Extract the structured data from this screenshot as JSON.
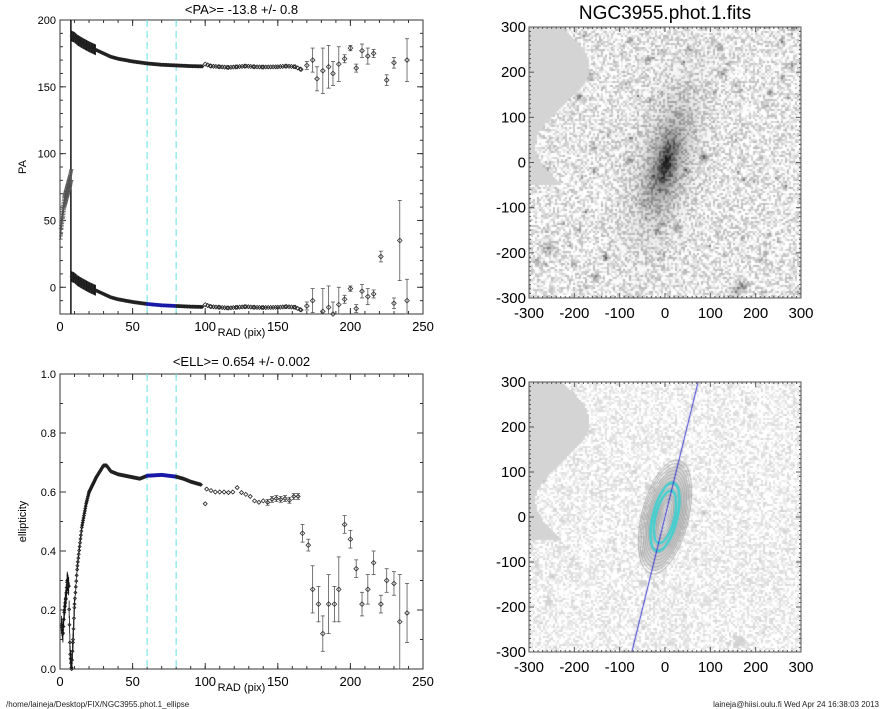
{
  "chart_data": [
    {
      "type": "scatter",
      "id": "pa",
      "title": "<PA>= -13.8 +/-   0.8",
      "xlabel": "RAD (pix)",
      "ylabel": "PA",
      "xlim": [
        0,
        250
      ],
      "ylim": [
        -20,
        200
      ],
      "xticks": [
        "0",
        "50",
        "100",
        "150",
        "200",
        "250"
      ],
      "yticks": [
        "0",
        "50",
        "100",
        "150",
        "200"
      ],
      "fit_range": [
        60,
        80
      ],
      "colors": {
        "points": "#222222",
        "fit": "#1a1aa8",
        "marker_lines": "#7fe8e8"
      },
      "inner_branch": [
        [
          0.5,
          40
        ],
        [
          1,
          48
        ],
        [
          2,
          56
        ],
        [
          3,
          64
        ],
        [
          4,
          68
        ],
        [
          5,
          72
        ],
        [
          6,
          76
        ],
        [
          7,
          80
        ],
        [
          7.8,
          84
        ]
      ],
      "upper_branch": [
        [
          8,
          188
        ],
        [
          10,
          187
        ],
        [
          12,
          185
        ],
        [
          15,
          183
        ],
        [
          20,
          180
        ],
        [
          25,
          177.5
        ],
        [
          30,
          175
        ],
        [
          35,
          172.5
        ],
        [
          40,
          171
        ],
        [
          50,
          169
        ],
        [
          60,
          167.5
        ],
        [
          70,
          166.5
        ],
        [
          80,
          166
        ],
        [
          90,
          165.5
        ],
        [
          98,
          165.3
        ],
        [
          100,
          167
        ],
        [
          104,
          165.5
        ],
        [
          110,
          165
        ],
        [
          116,
          164.5
        ],
        [
          122,
          165
        ],
        [
          128,
          165.5
        ],
        [
          134,
          165
        ],
        [
          140,
          164.8
        ],
        [
          150,
          165
        ],
        [
          156,
          165.5
        ],
        [
          162,
          165
        ],
        [
          166,
          163
        ]
      ],
      "lower_branch_offset": -180,
      "outer_points": [
        {
          "r": 170,
          "pa": 166,
          "err": 3
        },
        {
          "r": 174,
          "pa": 170,
          "err": 9
        },
        {
          "r": 177,
          "pa": 156,
          "err": 9
        },
        {
          "r": 181,
          "pa": 162,
          "err": 17
        },
        {
          "r": 185,
          "pa": 165,
          "err": 16
        },
        {
          "r": 188,
          "pa": 160,
          "err": 9
        },
        {
          "r": 192,
          "pa": 167,
          "err": 13
        },
        {
          "r": 196,
          "pa": 171,
          "err": 3
        },
        {
          "r": 200,
          "pa": 179,
          "err": 2
        },
        {
          "r": 204,
          "pa": 164,
          "err": 3
        },
        {
          "r": 208,
          "pa": 177,
          "err": 5
        },
        {
          "r": 212,
          "pa": 173,
          "err": 6
        },
        {
          "r": 216,
          "pa": 175,
          "err": 3
        },
        {
          "r": 225,
          "pa": 155,
          "err": 4
        },
        {
          "r": 230,
          "pa": 168,
          "err": 4
        },
        {
          "r": 239,
          "pa": 170,
          "err": 16
        }
      ],
      "extra_points": [
        {
          "r": 221,
          "pa": 23,
          "err": 4
        },
        {
          "r": 234,
          "pa": 35,
          "err": 30
        }
      ]
    },
    {
      "type": "scatter",
      "id": "ell",
      "title": "<ELL>= 0.654 +/-  0.002",
      "xlabel": "RAD (pix)",
      "ylabel": "ellipticity",
      "xlim": [
        0,
        250
      ],
      "ylim": [
        0,
        1
      ],
      "xticks": [
        "0",
        "50",
        "100",
        "150",
        "200",
        "250"
      ],
      "yticks": [
        "0.0",
        "0.2",
        "0.4",
        "0.6",
        "0.8",
        "1.0"
      ],
      "fit_range": [
        60,
        80
      ],
      "inner_profile": [
        [
          1,
          0.15
        ],
        [
          2,
          0.12
        ],
        [
          3,
          0.2
        ],
        [
          4,
          0.24
        ],
        [
          5,
          0.3
        ],
        [
          6,
          0.28
        ],
        [
          6.5,
          0.15
        ],
        [
          7,
          0.05
        ],
        [
          8,
          0.0
        ],
        [
          9,
          0.1
        ],
        [
          10,
          0.22
        ],
        [
          12,
          0.35
        ],
        [
          15,
          0.48
        ],
        [
          18,
          0.56
        ],
        [
          20,
          0.6
        ],
        [
          25,
          0.65
        ],
        [
          30,
          0.69
        ],
        [
          32,
          0.69
        ],
        [
          35,
          0.67
        ],
        [
          40,
          0.66
        ],
        [
          50,
          0.65
        ],
        [
          55,
          0.645
        ],
        [
          60,
          0.655
        ],
        [
          70,
          0.658
        ],
        [
          80,
          0.652
        ],
        [
          85,
          0.645
        ],
        [
          90,
          0.635
        ],
        [
          97,
          0.625
        ]
      ],
      "mid_points": [
        [
          100,
          0.56
        ],
        [
          101,
          0.61
        ],
        [
          104,
          0.605
        ],
        [
          107,
          0.6
        ],
        [
          110,
          0.6
        ],
        [
          113,
          0.6
        ],
        [
          116,
          0.598
        ],
        [
          119,
          0.6
        ],
        [
          122,
          0.615
        ],
        [
          125,
          0.598
        ],
        [
          128,
          0.592
        ],
        [
          131,
          0.585
        ],
        [
          134,
          0.57
        ],
        [
          137,
          0.565
        ],
        [
          140,
          0.57
        ],
        [
          143,
          0.565
        ],
        [
          146,
          0.575
        ],
        [
          149,
          0.578
        ],
        [
          152,
          0.575
        ],
        [
          155,
          0.578
        ],
        [
          158,
          0.572
        ],
        [
          161,
          0.585
        ],
        [
          164,
          0.585
        ]
      ],
      "outer_points": [
        {
          "r": 167,
          "e": 0.46,
          "err": 0.03
        },
        {
          "r": 171,
          "e": 0.42,
          "err": 0.02
        },
        {
          "r": 174,
          "e": 0.27,
          "err": 0.08
        },
        {
          "r": 178,
          "e": 0.22,
          "err": 0.06
        },
        {
          "r": 181,
          "e": 0.12,
          "err": 0.06
        },
        {
          "r": 185,
          "e": 0.22,
          "err": 0.1
        },
        {
          "r": 189,
          "e": 0.22,
          "err": 0.06
        },
        {
          "r": 192,
          "e": 0.27,
          "err": 0.11
        },
        {
          "r": 196,
          "e": 0.49,
          "err": 0.03
        },
        {
          "r": 200,
          "e": 0.44,
          "err": 0.03
        },
        {
          "r": 204,
          "e": 0.34,
          "err": 0.03
        },
        {
          "r": 208,
          "e": 0.22,
          "err": 0.04
        },
        {
          "r": 212,
          "e": 0.27,
          "err": 0.05
        },
        {
          "r": 216,
          "e": 0.36,
          "err": 0.04
        },
        {
          "r": 221,
          "e": 0.22,
          "err": 0.03
        },
        {
          "r": 225,
          "e": 0.3,
          "err": 0.04
        },
        {
          "r": 230,
          "e": 0.29,
          "err": 0.04
        },
        {
          "r": 234,
          "e": 0.16,
          "err": 0.16
        },
        {
          "r": 239,
          "e": 0.19,
          "err": 0.1
        }
      ]
    },
    {
      "type": "image",
      "id": "img1",
      "title": "NGC3955.phot.1.fits",
      "xlim": [
        -300,
        300
      ],
      "ylim": [
        -300,
        300
      ],
      "ticks": [
        "-300",
        "-200",
        "-100",
        "0",
        "100",
        "200",
        "300"
      ]
    },
    {
      "type": "image",
      "id": "img2",
      "title": "",
      "xlim": [
        -300,
        300
      ],
      "ylim": [
        -300,
        300
      ],
      "ticks": [
        "-300",
        "-200",
        "-100",
        "0",
        "100",
        "200",
        "300"
      ],
      "pa_line_deg": -13.8,
      "ellipticity": 0.654,
      "colors": {
        "line": "#3030d0",
        "fit_ellipse": "#40d0d0",
        "contours": "#9a9a9a"
      }
    }
  ],
  "footer": {
    "path": "/home/laineja/Desktop/FIX/NGC3955.phot.1_ellipse",
    "user_date": "laineja@hiisi.oulu.fi  Wed Apr 24 16:38:03 2013"
  }
}
